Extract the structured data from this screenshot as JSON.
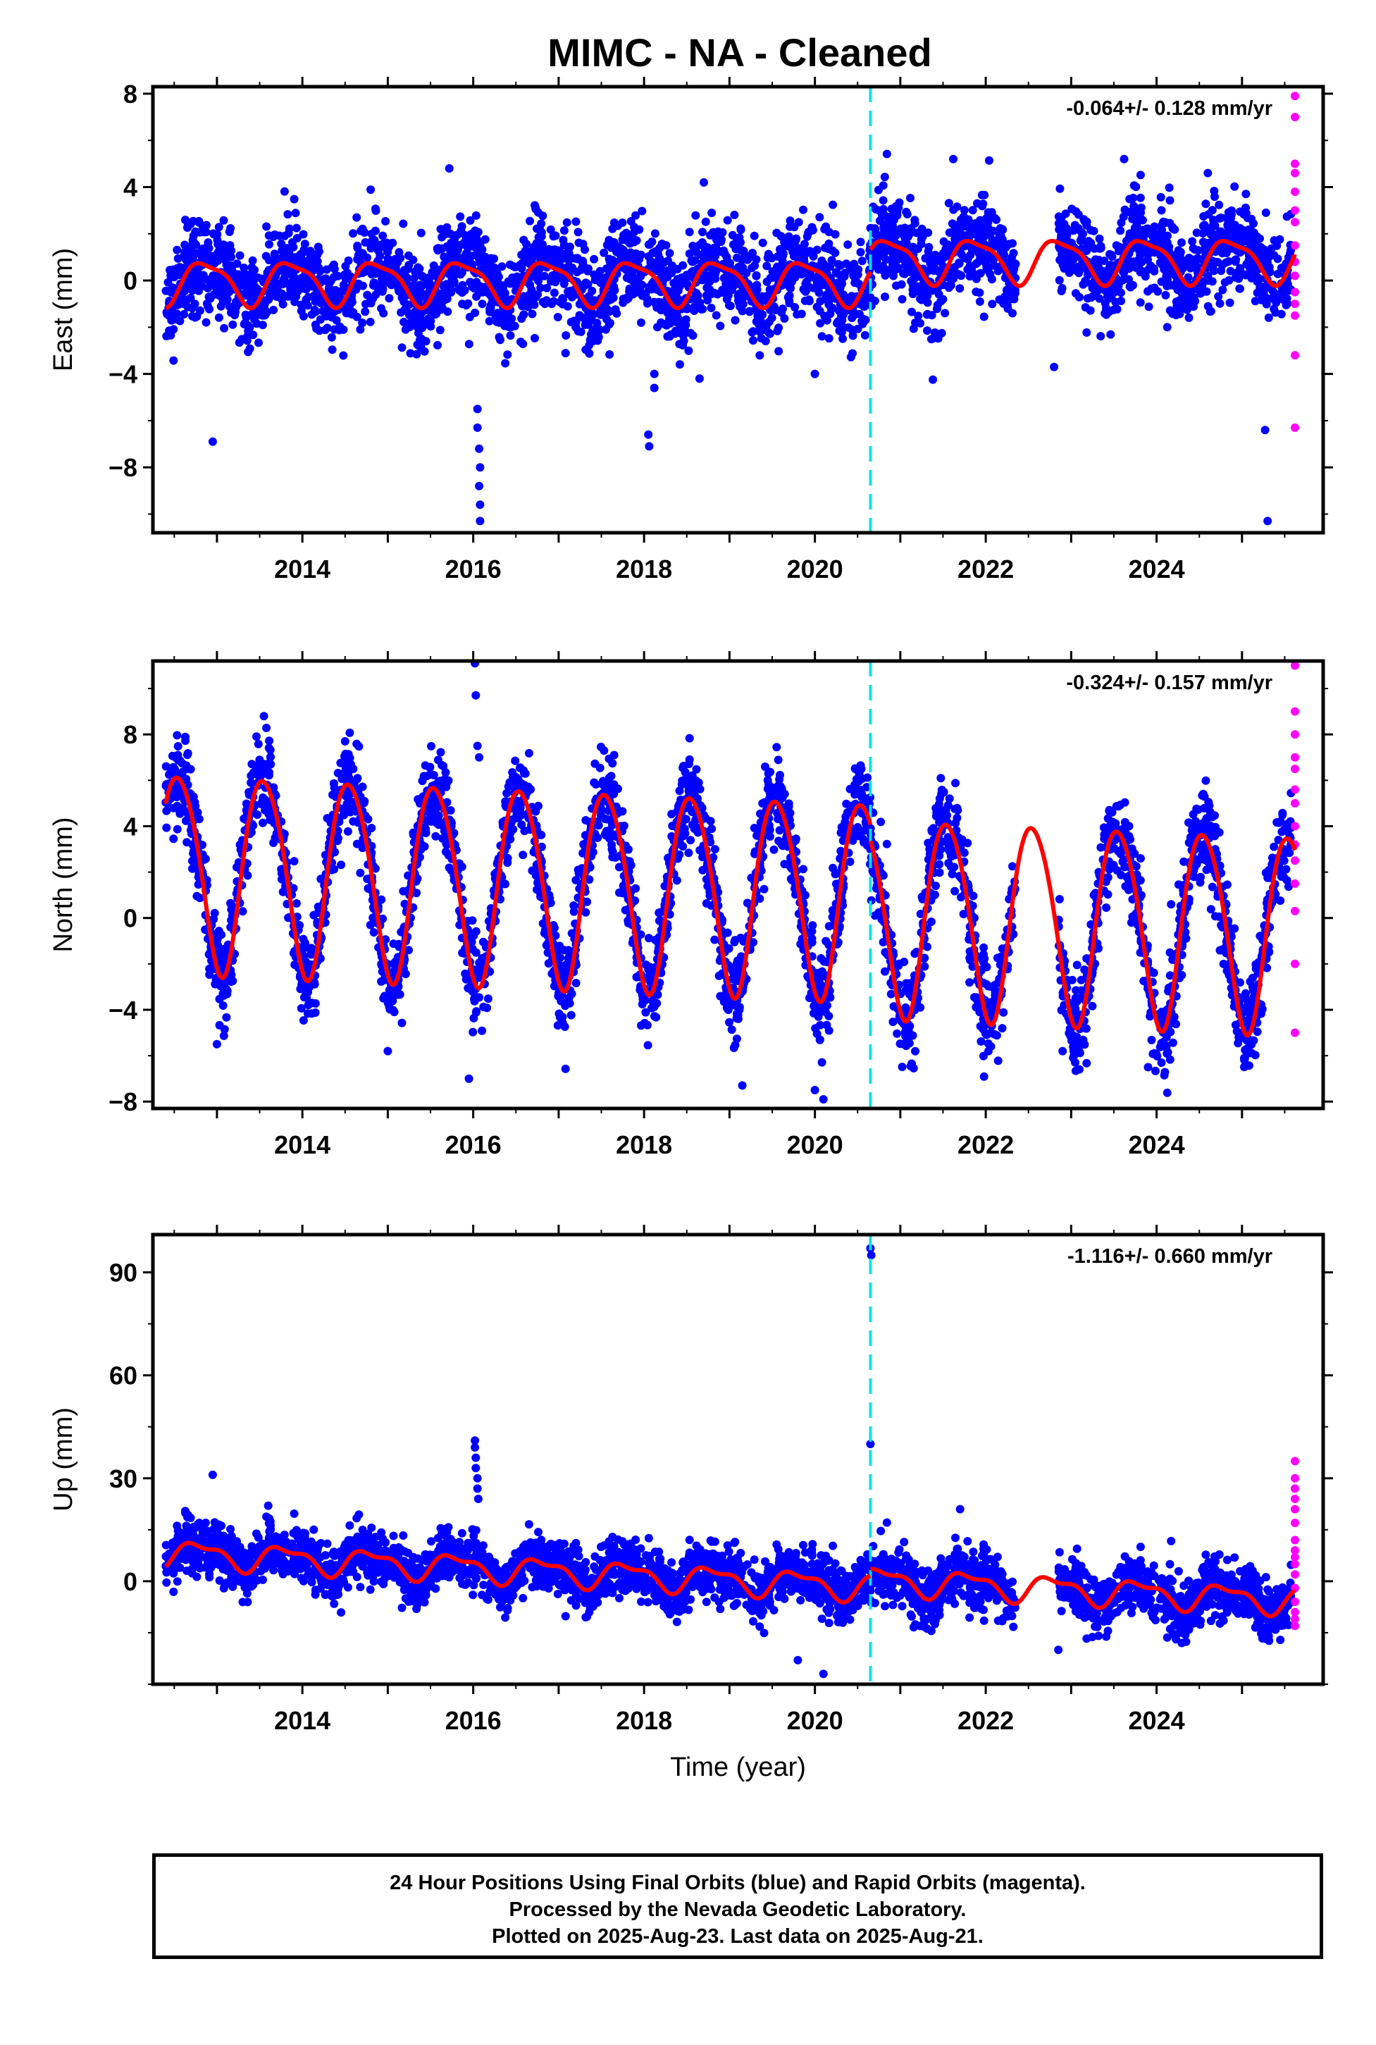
{
  "title": "MIMC  - NA - Cleaned",
  "colors": {
    "final": "#0000ff",
    "rapid": "#ff00ff",
    "model": "#ff0000",
    "offset": "#00e5e5"
  },
  "footer": {
    "line1": "24 Hour Positions Using Final Orbits (blue) and Rapid Orbits (magenta).",
    "line2": "Processed by the Nevada Geodetic Laboratory.",
    "line3": "Plotted on 2025-Aug-23. Last data on 2025-Aug-21."
  },
  "chart_data": [
    {
      "type": "scatter",
      "ylabel": "East (mm)",
      "xlabel": "",
      "xlim": [
        2012.25,
        2025.95
      ],
      "ylim": [
        -10.8,
        8.3
      ],
      "yticks": [
        -8,
        -4,
        0,
        4,
        8
      ],
      "xticks": [
        2014,
        2016,
        2018,
        2020,
        2022,
        2024
      ],
      "rate": "-0.064+/- 0.128 mm/yr",
      "offset_epoch": 2020.65,
      "data_range": [
        2012.4,
        2025.63
      ],
      "gap": [
        2022.35,
        2022.85
      ],
      "rapid_start": 2025.58,
      "scatter_sigma": 1.0,
      "model": {
        "amp": 0.9,
        "phase": 0.62,
        "semi": 0.25,
        "pre_mean": -0.05,
        "post_mean": 0.9,
        "drift": 0.0
      },
      "outliers": [
        [
          2012.95,
          -6.9
        ],
        [
          2016.05,
          -5.5
        ],
        [
          2016.05,
          -6.3
        ],
        [
          2016.07,
          -7.2
        ],
        [
          2016.08,
          -8.0
        ],
        [
          2016.07,
          -8.8
        ],
        [
          2016.08,
          -9.6
        ],
        [
          2016.08,
          -10.3
        ],
        [
          2018.05,
          -6.6
        ],
        [
          2018.06,
          -7.1
        ],
        [
          2018.12,
          -4.0
        ],
        [
          2018.12,
          -4.6
        ],
        [
          2018.7,
          4.2
        ],
        [
          2015.72,
          4.8
        ],
        [
          2021.62,
          5.2
        ],
        [
          2023.62,
          5.2
        ],
        [
          2024.6,
          4.6
        ],
        [
          2025.27,
          -6.4
        ],
        [
          2025.3,
          -10.3
        ],
        [
          2020.0,
          -4.0
        ],
        [
          2018.65,
          -4.2
        ],
        [
          2022.8,
          -3.7
        ]
      ],
      "rapid_points": [
        [
          2025.62,
          7.9
        ],
        [
          2025.62,
          7.0
        ],
        [
          2025.62,
          5.0
        ],
        [
          2025.62,
          4.6
        ],
        [
          2025.62,
          3.8
        ],
        [
          2025.62,
          3.0
        ],
        [
          2025.62,
          2.5
        ],
        [
          2025.62,
          1.5
        ],
        [
          2025.62,
          0.8
        ],
        [
          2025.62,
          0.2
        ],
        [
          2025.62,
          -0.5
        ],
        [
          2025.62,
          -1.0
        ],
        [
          2025.62,
          -1.5
        ],
        [
          2025.62,
          -3.2
        ],
        [
          2025.62,
          -6.3
        ]
      ]
    },
    {
      "type": "scatter",
      "ylabel": "North (mm)",
      "xlabel": "",
      "xlim": [
        2012.25,
        2025.95
      ],
      "ylim": [
        -8.3,
        11.2
      ],
      "yticks": [
        -8,
        -4,
        0,
        4,
        8
      ],
      "xticks": [
        2014,
        2016,
        2018,
        2020,
        2022,
        2024
      ],
      "rate": "-0.324+/- 0.157 mm/yr",
      "offset_epoch": 2020.65,
      "data_range": [
        2012.4,
        2025.63
      ],
      "gap": [
        2022.35,
        2022.85
      ],
      "rapid_start": 2025.58,
      "scatter_sigma": 1.0,
      "model": {
        "amp": 4.3,
        "phase": 0.3,
        "semi": 0.4,
        "pre_mean": 1.3,
        "post_mean": 0.6,
        "drift": -0.15
      },
      "outliers": [
        [
          2016.02,
          11.1
        ],
        [
          2016.03,
          9.7
        ],
        [
          2016.05,
          7.5
        ],
        [
          2016.07,
          7.0
        ],
        [
          2013.55,
          8.8
        ],
        [
          2014.5,
          7.7
        ],
        [
          2017.65,
          7.1
        ],
        [
          2015.95,
          -7.0
        ],
        [
          2019.15,
          -7.3
        ],
        [
          2020.1,
          -7.9
        ],
        [
          2020.0,
          -7.5
        ],
        [
          2023.9,
          -6.5
        ],
        [
          2022.9,
          -5.8
        ],
        [
          2013.0,
          -5.5
        ],
        [
          2015.0,
          -5.8
        ]
      ],
      "rapid_points": [
        [
          2025.62,
          11.0
        ],
        [
          2025.62,
          9.0
        ],
        [
          2025.62,
          8.0
        ],
        [
          2025.62,
          7.0
        ],
        [
          2025.62,
          6.5
        ],
        [
          2025.62,
          5.6
        ],
        [
          2025.62,
          5.0
        ],
        [
          2025.62,
          4.0
        ],
        [
          2025.62,
          3.2
        ],
        [
          2025.62,
          2.5
        ],
        [
          2025.62,
          1.5
        ],
        [
          2025.62,
          0.3
        ],
        [
          2025.62,
          -2.0
        ],
        [
          2025.62,
          -5.0
        ]
      ]
    },
    {
      "type": "scatter",
      "ylabel": "Up (mm)",
      "xlabel": "Time (year)",
      "xlim": [
        2012.25,
        2025.95
      ],
      "ylim": [
        -30,
        101
      ],
      "yticks": [
        0,
        30,
        60,
        90
      ],
      "xticks": [
        2014,
        2016,
        2018,
        2020,
        2022,
        2024
      ],
      "rate": "-1.116+/- 0.660 mm/yr",
      "offset_epoch": 2020.65,
      "data_range": [
        2012.4,
        2025.63
      ],
      "gap": [
        2022.35,
        2022.85
      ],
      "rapid_start": 2025.58,
      "scatter_sigma": 4.0,
      "model": {
        "amp": 3.5,
        "phase": 0.55,
        "semi": 1.5,
        "pre_mean": 1.5,
        "post_mean": 3.5,
        "drift": -1.2
      },
      "outliers": [
        [
          2016.02,
          41
        ],
        [
          2016.02,
          39
        ],
        [
          2016.03,
          36
        ],
        [
          2016.03,
          33
        ],
        [
          2016.05,
          30
        ],
        [
          2016.05,
          27
        ],
        [
          2016.06,
          24
        ],
        [
          2020.65,
          97
        ],
        [
          2020.66,
          95
        ],
        [
          2020.65,
          40
        ],
        [
          2012.95,
          31
        ],
        [
          2013.6,
          22
        ],
        [
          2021.7,
          21
        ],
        [
          2020.1,
          -27
        ],
        [
          2019.8,
          -23
        ],
        [
          2022.85,
          -20
        ]
      ],
      "rapid_points": [
        [
          2025.62,
          35
        ],
        [
          2025.62,
          30
        ],
        [
          2025.62,
          27
        ],
        [
          2025.62,
          24
        ],
        [
          2025.62,
          21
        ],
        [
          2025.62,
          17
        ],
        [
          2025.62,
          12
        ],
        [
          2025.62,
          9
        ],
        [
          2025.62,
          7
        ],
        [
          2025.62,
          5
        ],
        [
          2025.62,
          2
        ],
        [
          2025.62,
          -2
        ],
        [
          2025.62,
          -6
        ],
        [
          2025.62,
          -9
        ],
        [
          2025.62,
          -11
        ],
        [
          2025.62,
          -13
        ]
      ]
    }
  ]
}
